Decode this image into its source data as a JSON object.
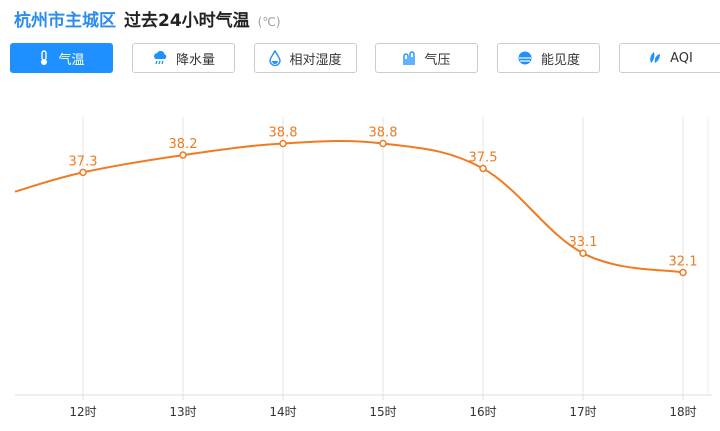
{
  "header": {
    "location": "杭州市主城区",
    "subtitle": "过去24小时气温",
    "unit": "(℃)"
  },
  "tabs": [
    {
      "label": "气温",
      "icon": "thermometer-icon",
      "active": true
    },
    {
      "label": "降水量",
      "icon": "rain-cloud-icon",
      "active": false
    },
    {
      "label": "相对湿度",
      "icon": "water-drop-icon",
      "active": false
    },
    {
      "label": "气压",
      "icon": "pressure-icon",
      "active": false
    },
    {
      "label": "能见度",
      "icon": "visibility-icon",
      "active": false
    },
    {
      "label": "AQI",
      "icon": "leaf-icon",
      "active": false
    }
  ],
  "colors": {
    "accent": "#1e90ff",
    "line": "#f07b22",
    "location_text": "#2d8cf0"
  },
  "chart_data": {
    "type": "line",
    "title": "杭州市主城区 过去24小时气温",
    "ylabel": "",
    "xlabel": "",
    "unit": "℃",
    "categories": [
      "12时",
      "13时",
      "14时",
      "15时",
      "16时",
      "17时",
      "18时"
    ],
    "values": [
      37.3,
      38.2,
      38.8,
      38.8,
      37.5,
      33.1,
      32.1
    ],
    "partial_left_value": 36.3,
    "ylim": [
      26,
      40
    ],
    "grid": "vertical",
    "legend": "none"
  }
}
